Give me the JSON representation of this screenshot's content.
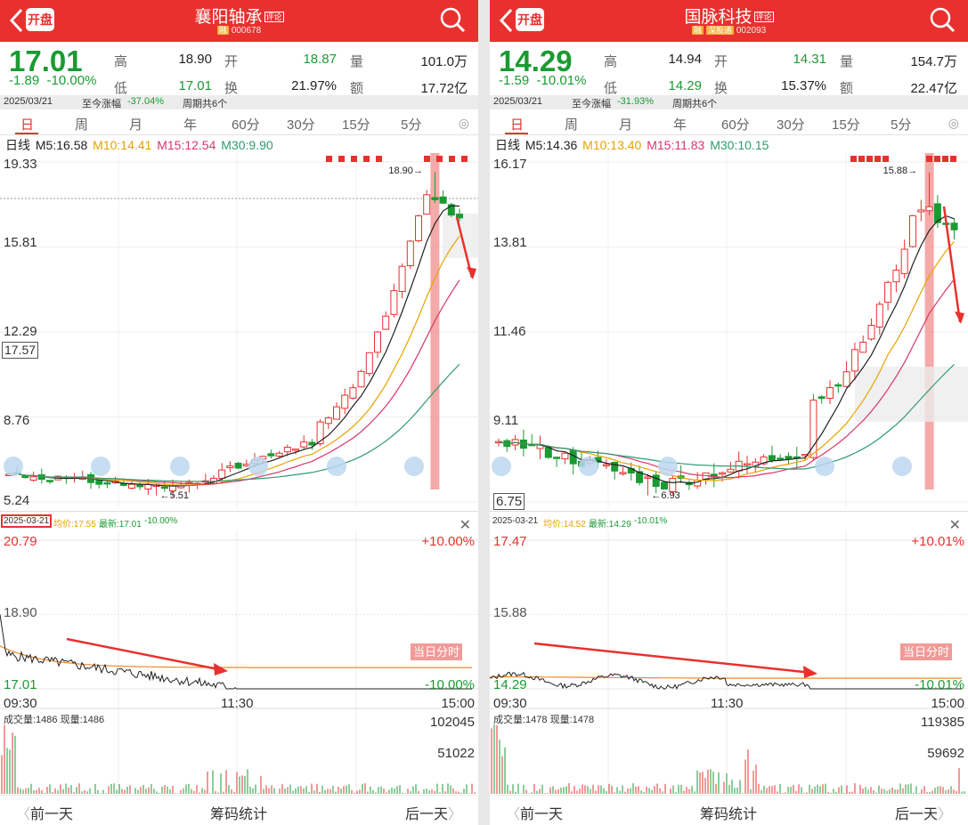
{
  "panels": [
    {
      "header": {
        "name": "襄阳轴承",
        "tag": "评论",
        "market_tag": "融",
        "code": "000678",
        "kaipan": "开盘"
      },
      "quote": {
        "price": "17.01",
        "change": "-1.89",
        "change_pct": "-10.00%",
        "high_label": "高",
        "high": "18.90",
        "open_label": "开",
        "open": "18.87",
        "vol_label": "量",
        "volume": "101.0万",
        "low_label": "低",
        "low": "17.01",
        "turnover_label": "换",
        "turnover": "21.97%",
        "amount_label": "额",
        "amount": "17.72亿"
      },
      "strip": {
        "date": "2025/03/21",
        "since_label": "至今涨幅",
        "since_value": "-37.04%",
        "period": "周期共6个"
      },
      "tabs": [
        "日",
        "周",
        "月",
        "年",
        "60分",
        "30分",
        "15分",
        "5分"
      ],
      "ma_line": {
        "label": "日线",
        "m5": "M5:16.58",
        "m10": "M10:14.41",
        "m15": "M15:12.54",
        "m30": "M30:9.90"
      },
      "kchart": {
        "y_ticks": [
          "19.33",
          "15.81",
          "12.29",
          "8.76",
          "5.24"
        ],
        "current_label": "17.57",
        "high_label": "18.90",
        "low_label": "5.51",
        "fenshi_button": "当日分时"
      },
      "mini": {
        "date": "2025-03-21",
        "avg": "均价:17.55",
        "last": "最新:17.01",
        "last_pct": "-10.00%"
      },
      "intraday": {
        "y_top": "20.79",
        "y_mid": "18.90",
        "y_bot": "17.01",
        "pct_top": "+10.00%",
        "pct_bot": "-10.00%",
        "t_start": "09:30",
        "t_mid": "11:30",
        "t_end": "15:00"
      },
      "volume": {
        "label": "成交量:1486",
        "now_label": "现量:1486",
        "max": "102045",
        "mid": "51022"
      },
      "bottom": {
        "prev": "前一天",
        "center": "筹码统计",
        "next": "后一天"
      }
    },
    {
      "header": {
        "name": "国脉科技",
        "tag": "评论",
        "market_tag": "融",
        "market_tag2": "深股通",
        "code": "002093",
        "kaipan": "开盘"
      },
      "quote": {
        "price": "14.29",
        "change": "-1.59",
        "change_pct": "-10.01%",
        "high_label": "高",
        "high": "14.94",
        "open_label": "开",
        "open": "14.31",
        "vol_label": "量",
        "volume": "154.7万",
        "low_label": "低",
        "low": "14.29",
        "turnover_label": "换",
        "turnover": "15.37%",
        "amount_label": "额",
        "amount": "22.47亿"
      },
      "strip": {
        "date": "2025/03/21",
        "since_label": "至今涨幅",
        "since_value": "-31.93%",
        "period": "周期共6个"
      },
      "tabs": [
        "日",
        "周",
        "月",
        "年",
        "60分",
        "30分",
        "15分",
        "5分"
      ],
      "ma_line": {
        "label": "日线",
        "m5": "M5:14.36",
        "m10": "M10:13.40",
        "m15": "M15:11.83",
        "m30": "M30:10.15"
      },
      "kchart": {
        "y_ticks": [
          "16.17",
          "13.81",
          "11.46",
          "9.11",
          "6.75"
        ],
        "current_label": "",
        "high_label": "15.88",
        "low_label": "6.93",
        "fenshi_button": "当日分时"
      },
      "mini": {
        "date": "2025-03-21",
        "avg": "均价:14.52",
        "last": "最新:14.29",
        "last_pct": "-10.01%"
      },
      "intraday": {
        "y_top": "17.47",
        "y_mid": "15.88",
        "y_bot": "14.29",
        "pct_top": "+10.01%",
        "pct_bot": "-10.01%",
        "t_start": "09:30",
        "t_mid": "11:30",
        "t_end": "15:00"
      },
      "volume": {
        "label": "成交量:1478",
        "now_label": "现量:1478",
        "max": "119385",
        "mid": "59692"
      },
      "bottom": {
        "prev": "前一天",
        "center": "筹码统计",
        "next": "后一天"
      }
    }
  ],
  "colors": {
    "up": "#e8312f",
    "down": "#1a9b32",
    "m5": "#222222",
    "m10": "#e6a300",
    "m15": "#d9366b",
    "m30": "#2e9b6e",
    "avg_line": "#f08a24",
    "accent_box": "#e8312f"
  },
  "icons": [
    "back-arrow-icon",
    "search-icon",
    "settings-icon",
    "close-icon",
    "chevron-left-icon",
    "chevron-right-icon"
  ]
}
